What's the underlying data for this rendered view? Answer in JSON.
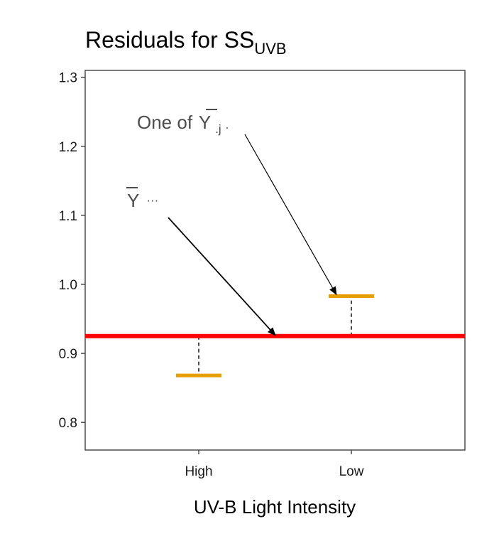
{
  "chart_data": {
    "type": "scatter",
    "title": "Residuals for SS",
    "title_subscript": "UVB",
    "xlabel": "UV-B Light Intensity",
    "ylabel": "",
    "categories": [
      "High",
      "Low"
    ],
    "ylim": [
      0.76,
      1.31
    ],
    "yticks": [
      0.8,
      0.9,
      1.0,
      1.1,
      1.2,
      1.3
    ],
    "ytick_labels": [
      "0.8",
      "0.9",
      "1.0",
      "1.1",
      "1.2",
      "1.3"
    ],
    "grand_mean": 0.925,
    "group_means": [
      {
        "category": "High",
        "value": 0.868
      },
      {
        "category": "Low",
        "value": 0.983
      }
    ],
    "grid": false,
    "legend": "none",
    "colors": {
      "grand_mean_line": "#ff0000",
      "group_mean_segment": "#e69f00",
      "residual_line": "#000000",
      "annotation_text": "#4d4d4d"
    },
    "annotations": [
      {
        "name": "group-mean-label",
        "text_main": "One of",
        "symbol": "Y",
        "subscript": ".j",
        "suffix": ".",
        "points_to": {
          "category": "Low",
          "value": 0.983
        }
      },
      {
        "name": "grand-mean-label",
        "text_main": "",
        "symbol": "Y",
        "subscript": "",
        "suffix": "···",
        "points_to": {
          "category": "between",
          "value": 0.925
        }
      }
    ]
  }
}
